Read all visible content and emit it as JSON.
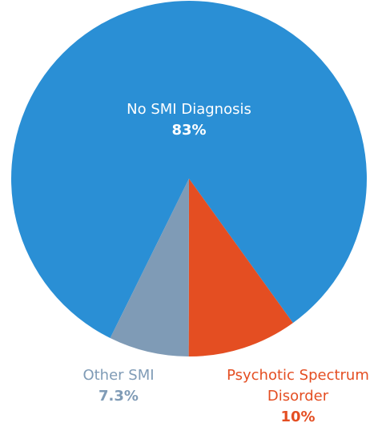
{
  "chart_data": {
    "type": "pie",
    "categories": [
      "No SMI Diagnosis",
      "Psychotic Spectrum Disorder",
      "Other SMI"
    ],
    "values": [
      83,
      10,
      7.3
    ],
    "value_labels": [
      "83%",
      "10%",
      "7.3%"
    ],
    "colors": [
      "#2a8fd5",
      "#e44e22",
      "#7f9bb6"
    ]
  }
}
